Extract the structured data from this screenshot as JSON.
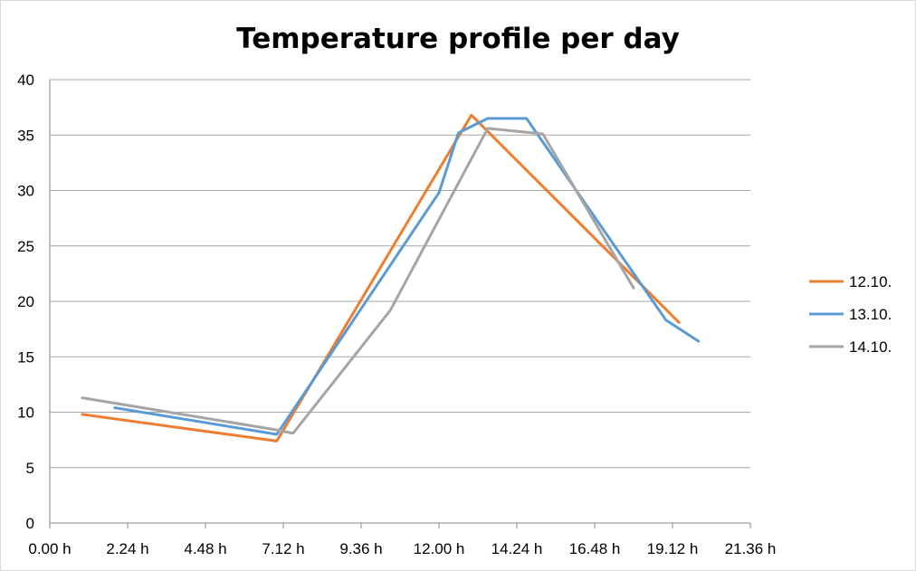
{
  "chart_data": {
    "type": "line",
    "title": "Temperature profile per day",
    "xlabel": "",
    "ylabel": "",
    "xlim": [
      0,
      21.6
    ],
    "ylim": [
      0,
      40
    ],
    "grid": true,
    "legend_position": "right",
    "x_tick_labels": [
      "0.00 h",
      "2.24 h",
      "4.48 h",
      "7.12 h",
      "9.36 h",
      "12.00 h",
      "14.24 h",
      "16.48 h",
      "19.12 h",
      "21.36 h"
    ],
    "y_tick_labels": [
      "0",
      "5",
      "10",
      "15",
      "20",
      "25",
      "30",
      "35",
      "40"
    ],
    "series": [
      {
        "name": "12.10.",
        "color": "#ed7d31",
        "points": [
          [
            1.0,
            9.8
          ],
          [
            7.0,
            7.4
          ],
          [
            13.0,
            36.8
          ],
          [
            19.4,
            18.1
          ]
        ]
      },
      {
        "name": "13.10.",
        "color": "#5b9bd5",
        "points": [
          [
            2.0,
            10.4
          ],
          [
            7.0,
            8.0
          ],
          [
            12.0,
            29.8
          ],
          [
            12.6,
            35.2
          ],
          [
            13.5,
            36.5
          ],
          [
            14.7,
            36.5
          ],
          [
            19.0,
            18.3
          ],
          [
            20.0,
            16.4
          ]
        ]
      },
      {
        "name": "14.10.",
        "color": "#a5a5a5",
        "points": [
          [
            1.0,
            11.3
          ],
          [
            7.0,
            8.4
          ],
          [
            7.5,
            8.1
          ],
          [
            10.5,
            19.2
          ],
          [
            13.5,
            35.6
          ],
          [
            15.2,
            35.1
          ],
          [
            18.0,
            21.2
          ]
        ]
      }
    ]
  }
}
